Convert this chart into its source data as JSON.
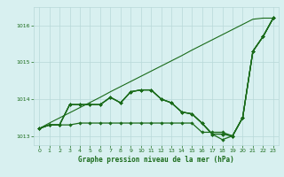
{
  "title": "Graphe pression niveau de la mer (hPa)",
  "bg_color": "#d8f0f0",
  "grid_color": "#b8d8d8",
  "line_color": "#1a6b1a",
  "xlim": [
    -0.5,
    23.5
  ],
  "ylim": [
    1012.75,
    1016.5
  ],
  "yticks": [
    1013,
    1014,
    1015,
    1016
  ],
  "xticks": [
    0,
    1,
    2,
    3,
    4,
    5,
    6,
    7,
    8,
    9,
    10,
    11,
    12,
    13,
    14,
    15,
    16,
    17,
    18,
    19,
    20,
    21,
    22,
    23
  ],
  "line1": [
    1013.2,
    1013.3,
    1013.3,
    1013.3,
    1013.35,
    1013.35,
    1013.35,
    1013.35,
    1013.35,
    1013.35,
    1013.35,
    1013.35,
    1013.35,
    1013.35,
    1013.35,
    1013.35,
    1013.1,
    1013.1,
    1013.1,
    1013.0,
    1013.5,
    1015.3,
    1015.7,
    1016.2
  ],
  "line2": [
    1013.2,
    1013.3,
    1013.3,
    1013.85,
    1013.85,
    1013.85,
    1013.85,
    1014.05,
    1013.9,
    1014.2,
    1014.25,
    1014.25,
    1014.0,
    1013.9,
    1013.65,
    1013.6,
    1013.35,
    1013.05,
    1013.05,
    1013.0,
    1013.5,
    1015.3,
    1015.7,
    1016.2
  ],
  "line3": [
    1013.2,
    1013.3,
    1013.3,
    1013.85,
    1013.85,
    1013.85,
    1013.85,
    1014.05,
    1013.9,
    1014.2,
    1014.25,
    1014.25,
    1014.0,
    1013.9,
    1013.65,
    1013.6,
    1013.35,
    1013.05,
    1013.05,
    1013.0,
    1013.5,
    1015.3,
    1015.7,
    1016.2
  ],
  "line4": [
    1013.2,
    1013.3,
    1013.3,
    1013.85,
    1013.85,
    1013.85,
    1013.85,
    1014.05,
    1013.9,
    1014.2,
    1014.25,
    1014.25,
    1014.0,
    1013.9,
    1013.65,
    1013.6,
    1013.35,
    1013.05,
    1012.9,
    1013.0,
    1013.5,
    1015.3,
    1015.7,
    1016.2
  ],
  "line_straight": [
    1013.2,
    1013.35,
    1013.49,
    1013.63,
    1013.77,
    1013.91,
    1014.05,
    1014.2,
    1014.34,
    1014.48,
    1014.62,
    1014.76,
    1014.9,
    1015.04,
    1015.18,
    1015.33,
    1015.47,
    1015.61,
    1015.75,
    1015.89,
    1016.03,
    1016.17,
    1016.2,
    1016.2
  ]
}
